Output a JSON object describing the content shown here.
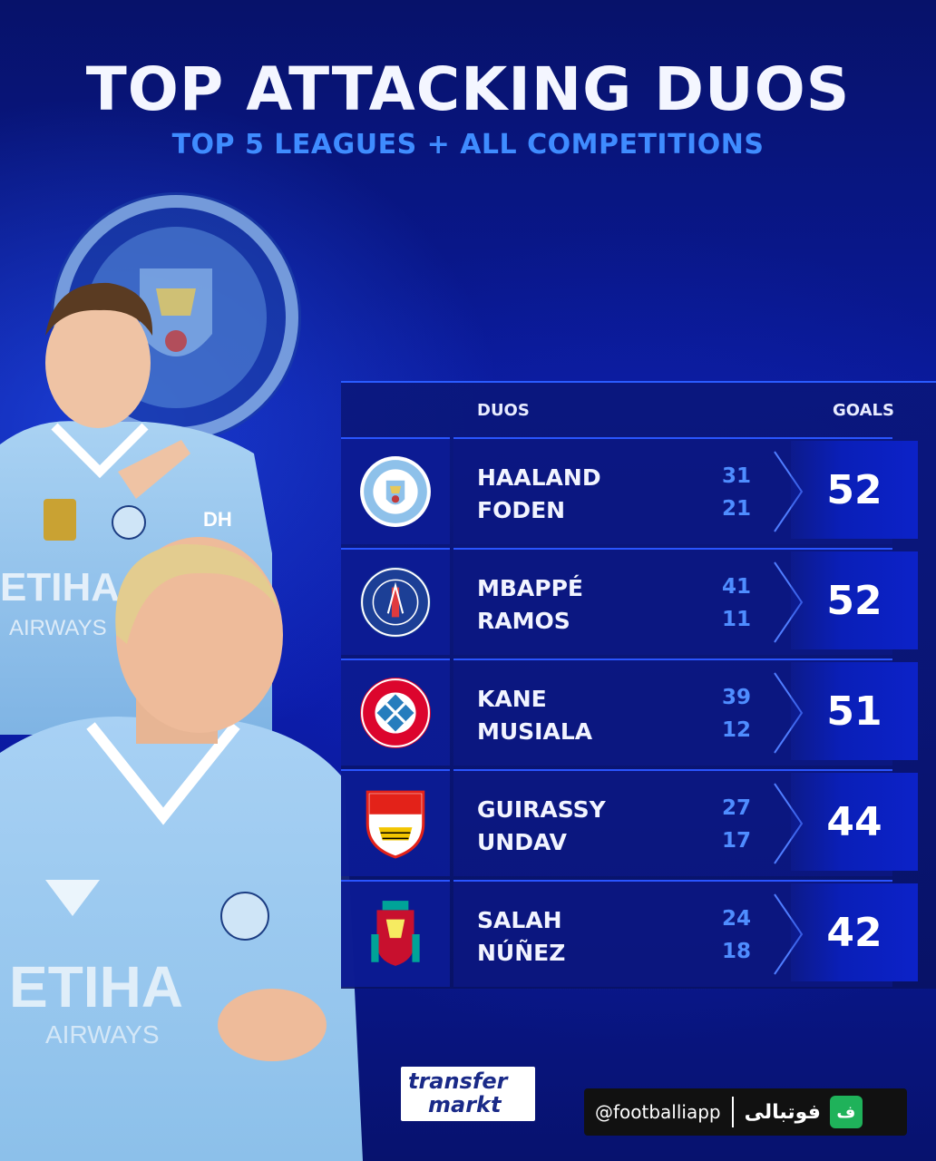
{
  "header": {
    "title": "TOP ATTACKING DUOS",
    "subtitle": "TOP 5 LEAGUES + ALL COMPETITIONS"
  },
  "table": {
    "col_duos": "DUOS",
    "col_goals": "GOALS",
    "rows": [
      {
        "club": "Manchester City",
        "crest_icon": "man-city-crest-icon",
        "player_a": "HAALAND",
        "goals_a": "31",
        "player_b": "FODEN",
        "goals_b": "21",
        "total": "52"
      },
      {
        "club": "Paris Saint-Germain",
        "crest_icon": "psg-crest-icon",
        "player_a": "MBAPPÉ",
        "goals_a": "41",
        "player_b": "RAMOS",
        "goals_b": "11",
        "total": "52"
      },
      {
        "club": "FC Bayern München",
        "crest_icon": "bayern-crest-icon",
        "player_a": "KANE",
        "goals_a": "39",
        "player_b": "MUSIALA",
        "goals_b": "12",
        "total": "51"
      },
      {
        "club": "VfB Stuttgart",
        "crest_icon": "stuttgart-crest-icon",
        "player_a": "GUIRASSY",
        "goals_a": "27",
        "player_b": "UNDAV",
        "goals_b": "17",
        "total": "44"
      },
      {
        "club": "Liverpool",
        "crest_icon": "liverpool-crest-icon",
        "player_a": "SALAH",
        "goals_a": "24",
        "player_b": "NÚÑEZ",
        "goals_b": "18",
        "total": "42"
      }
    ]
  },
  "footer": {
    "brand_line1": "transfer",
    "brand_line2": "markt",
    "handle": "@footballiapp",
    "handle_fa": "فوتبالی",
    "badge": "ف"
  },
  "colors": {
    "background": "#0a1a9c",
    "accent_blue": "#3f8cff",
    "goal_box": "#0c22c8",
    "city_sky_blue": "#98c5e9"
  }
}
